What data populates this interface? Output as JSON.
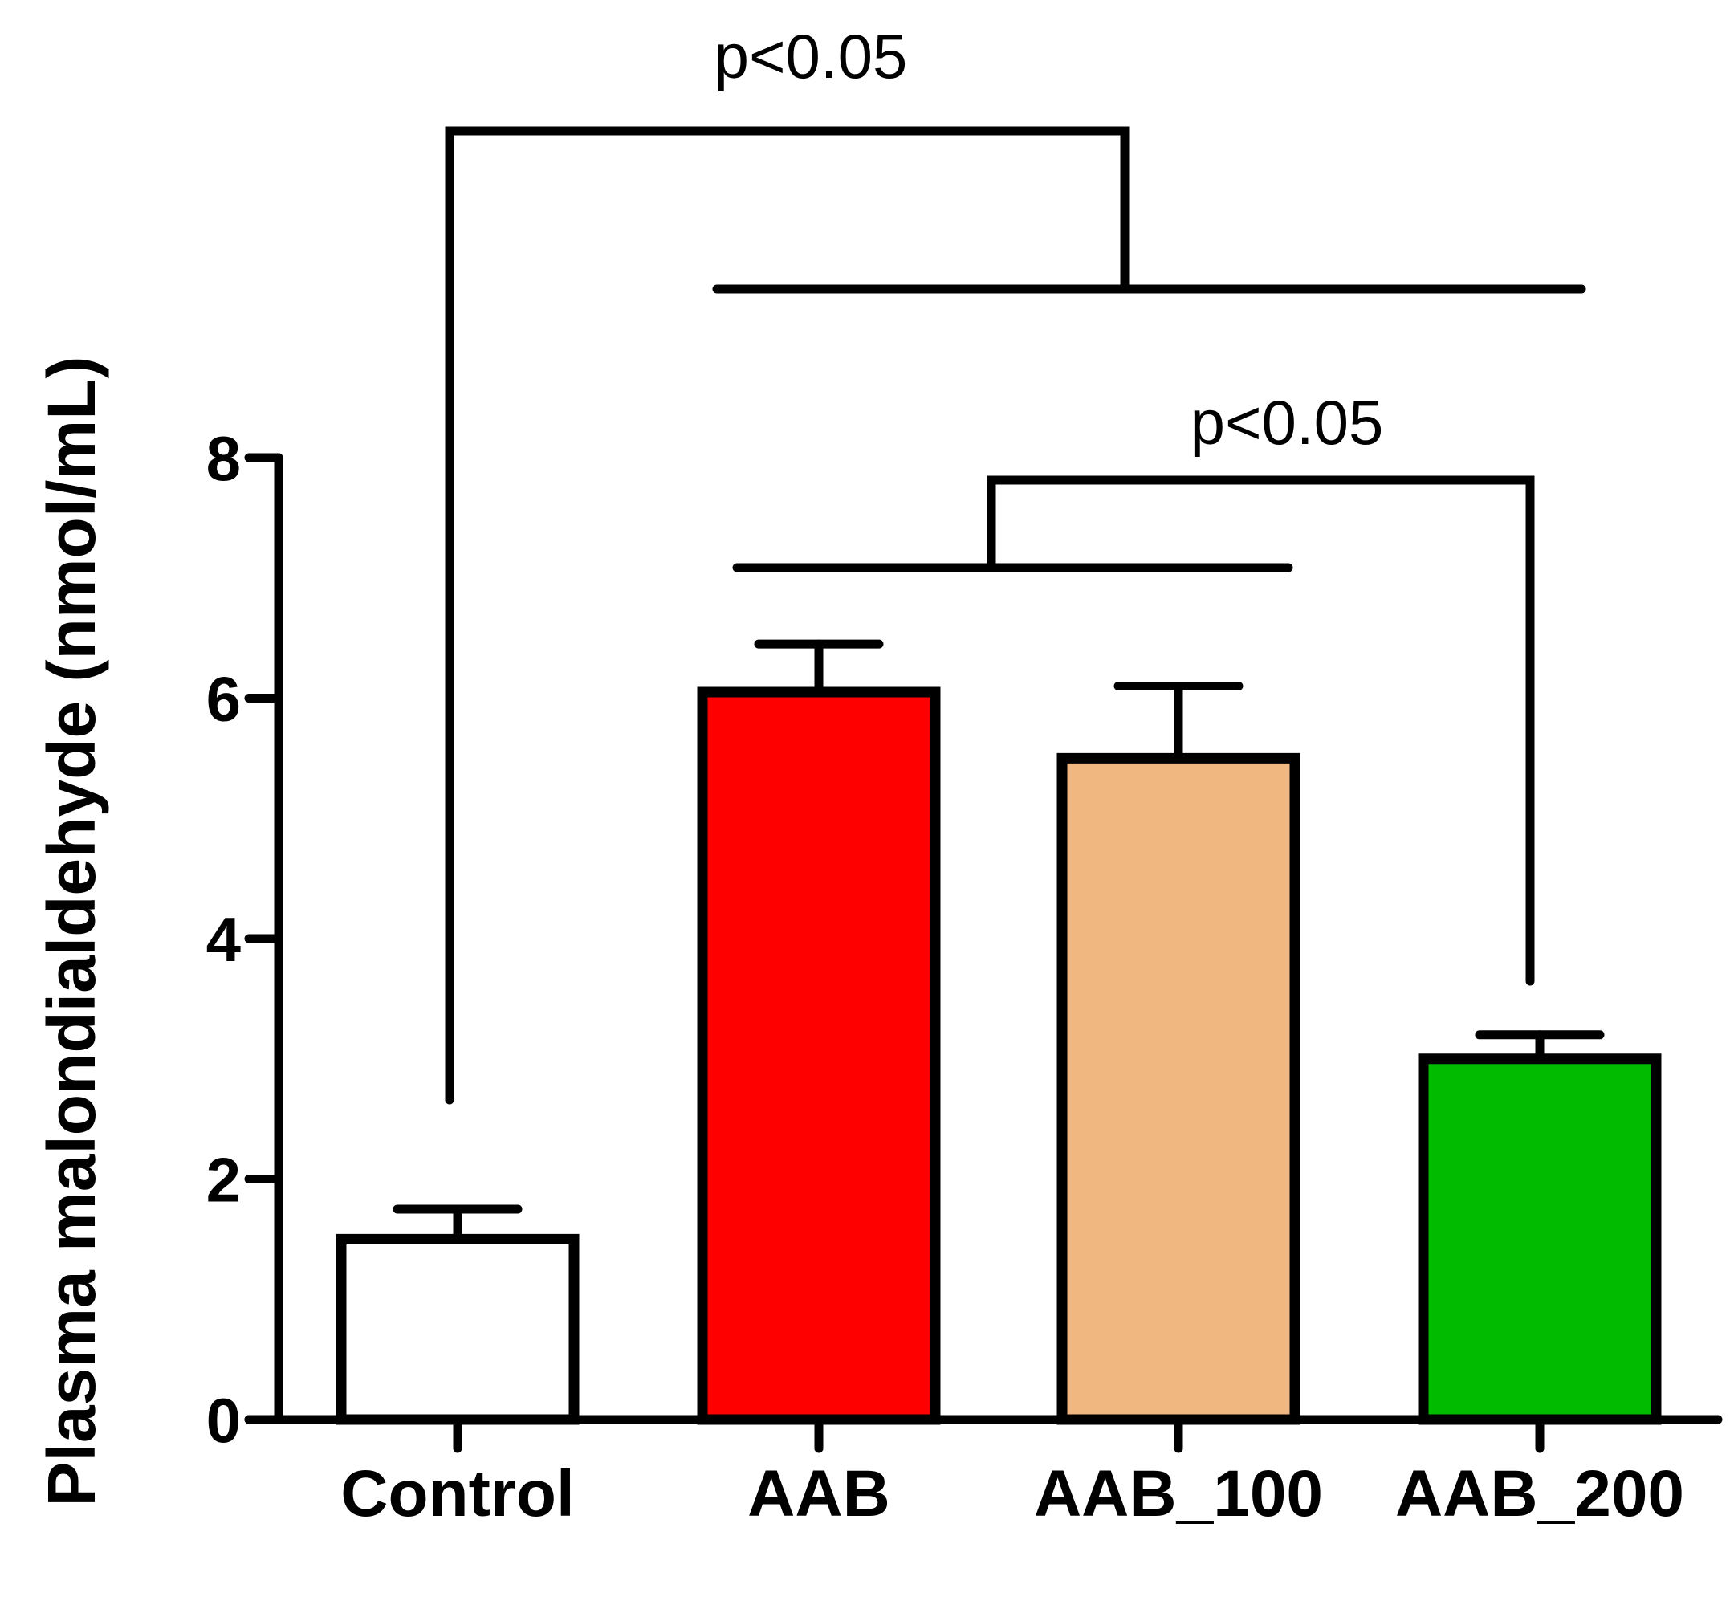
{
  "chart_data": {
    "type": "bar",
    "title": "",
    "xlabel": "",
    "ylabel": "Plasma malondialdehyde (nmol/mL)",
    "ylim": [
      0,
      8
    ],
    "yticks": [
      "0",
      "2",
      "4",
      "6",
      "8"
    ],
    "categories": [
      "Control",
      "AAB",
      "AAB_100",
      "AAB_200"
    ],
    "values": [
      1.5,
      6.05,
      5.5,
      3.0
    ],
    "errors": [
      0.25,
      0.4,
      0.6,
      0.2
    ],
    "colors": [
      "#ffffff",
      "#ff0000",
      "#f0b880",
      "#00bb00"
    ],
    "annotations": [
      {
        "label": "p<0.05",
        "compares": "Control vs AAB, AAB_100, AAB_200"
      },
      {
        "label": "p<0.05",
        "compares": "AAB, AAB_100 vs AAB_200"
      }
    ]
  }
}
